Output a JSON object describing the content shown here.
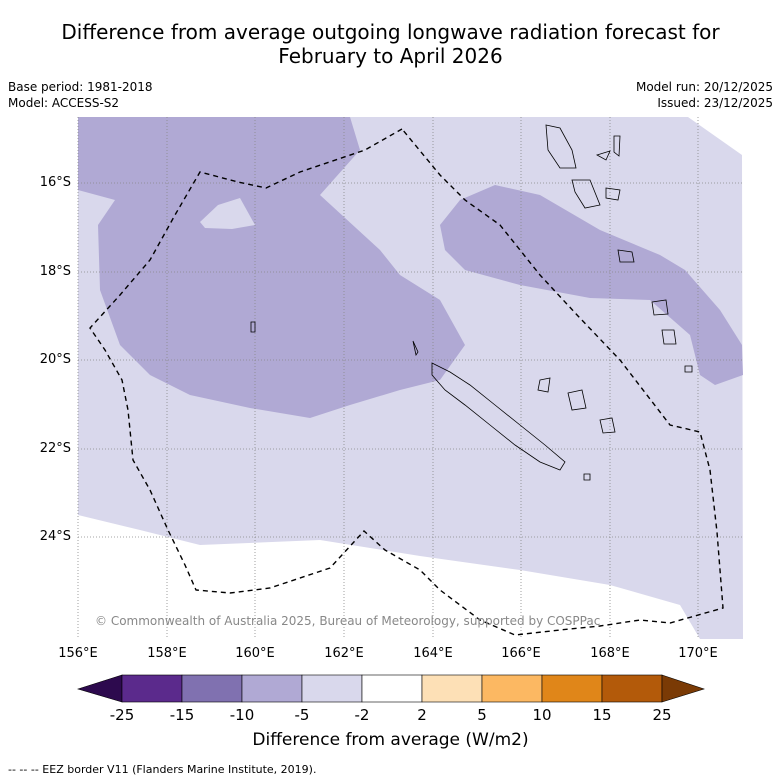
{
  "title_line1": "Difference from average outgoing longwave radiation forecast for",
  "title_line2": "February to April 2026",
  "base_period": "Base period: 1981-2018",
  "model": "Model: ACCESS-S2",
  "model_run": "Model run: 20/12/2025",
  "issued": "Issued: 23/12/2025",
  "copyright": "© Commonwealth of Australia 2025, Bureau of Meteorology, supported by COSPPac",
  "lat_labels": [
    "16°S",
    "18°S",
    "20°S",
    "22°S",
    "24°S"
  ],
  "lon_labels": [
    "156°E",
    "158°E",
    "160°E",
    "162°E",
    "164°E",
    "166°E",
    "168°E",
    "170°E"
  ],
  "colorbar": {
    "title": "Difference from average (W/m2)",
    "ticks": [
      "-25",
      "-15",
      "-10",
      "-5",
      "-2",
      "2",
      "5",
      "10",
      "15",
      "25"
    ],
    "colors": [
      "#2d0a4e",
      "#5b2a8c",
      "#8071b0",
      "#b0a9d4",
      "#d9d8ec",
      "#ffffff",
      "#fde0b6",
      "#fcb862",
      "#e08619",
      "#b35a0a",
      "#7a3a05"
    ]
  },
  "footnote": "--  --  -- EEZ border V11 (Flanders Marine Institute, 2019)."
}
